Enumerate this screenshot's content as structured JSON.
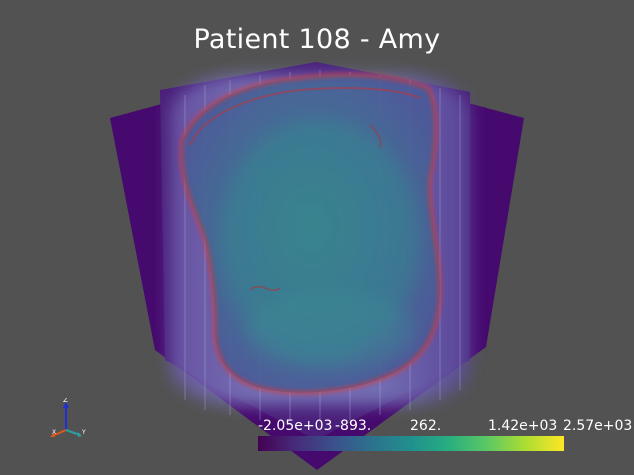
{
  "title": "Patient 108 - Amy",
  "colorbar": {
    "labels": [
      "-2.05e+03",
      "-893.",
      "262.",
      "1.42e+03",
      "2.57e+03"
    ],
    "colormap": [
      "#440154",
      "#3b518b",
      "#21908d",
      "#5cc863",
      "#fde725"
    ]
  },
  "orientation_axes": {
    "x_label": "X",
    "y_label": "Y",
    "z_label": "Z",
    "x_color": "#e0571e",
    "y_color": "#2f9e9e",
    "z_color": "#1e2fd6"
  }
}
